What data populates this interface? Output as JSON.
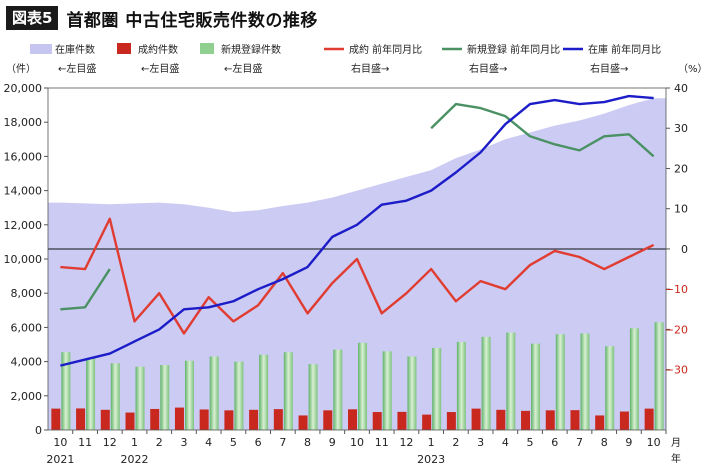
{
  "header": {
    "badge": "図表5",
    "title": "首都圏 中古住宅販売件数の推移"
  },
  "chart_data": {
    "type": "combo",
    "title": "首都圏 中古住宅販売件数の推移",
    "left_unit": "（件）",
    "right_unit": "（%）",
    "year_unit": "月\n年",
    "left_ylim": [
      0,
      20000
    ],
    "left_ticks": [
      "0",
      "2,000",
      "4,000",
      "6,000",
      "8,000",
      "10,000",
      "12,000",
      "14,000",
      "16,000",
      "18,000",
      "20,000"
    ],
    "right_ylim": [
      -45,
      40
    ],
    "right_ticks": [
      "40",
      "30",
      "20",
      "10",
      "0",
      "−10",
      "−20",
      "−30"
    ],
    "right_tick_values": [
      40,
      30,
      20,
      10,
      0,
      -10,
      -20,
      -30
    ],
    "months": [
      "10",
      "11",
      "12",
      "1",
      "2",
      "3",
      "4",
      "5",
      "6",
      "7",
      "8",
      "9",
      "10",
      "11",
      "12",
      "1",
      "2",
      "3",
      "4",
      "5",
      "6",
      "7",
      "8",
      "9",
      "10"
    ],
    "years": [
      {
        "label": "2021",
        "index": 0
      },
      {
        "label": "2022",
        "index": 3
      },
      {
        "label": "2023",
        "index": 15
      }
    ],
    "legend": [
      {
        "name": "在庫件数",
        "note": "←左目盛",
        "kind": "area",
        "color": "#c5c5f0"
      },
      {
        "name": "成約件数",
        "note": "←左目盛",
        "kind": "bar",
        "color": "#c8281e"
      },
      {
        "name": "新規登録件数",
        "note": "←左目盛",
        "kind": "bar",
        "color": "#8fcf8f"
      },
      {
        "name": "成約 前年同月比",
        "note": "右目盛→",
        "kind": "line",
        "color": "#e03c31"
      },
      {
        "name": "新規登録 前年同月比",
        "note": "右目盛→",
        "kind": "line",
        "color": "#4a9163"
      },
      {
        "name": "在庫 前年同月比",
        "note": "右目盛→",
        "kind": "line",
        "color": "#1c1cc8"
      }
    ],
    "series": [
      {
        "name": "在庫件数",
        "axis": "left",
        "values": [
          13300,
          13250,
          13200,
          13250,
          13300,
          13200,
          13000,
          12750,
          12850,
          13100,
          13300,
          13600,
          14000,
          14400,
          14800,
          15200,
          15900,
          16400,
          17000,
          17400,
          17800,
          18100,
          18500,
          19000,
          19400
        ]
      },
      {
        "name": "成約件数",
        "axis": "left",
        "values": [
          1250,
          1260,
          1180,
          1020,
          1230,
          1310,
          1200,
          1150,
          1180,
          1220,
          850,
          1150,
          1210,
          1050,
          1060,
          900,
          1050,
          1250,
          1180,
          1120,
          1150,
          1160,
          850,
          1080,
          1250
        ]
      },
      {
        "name": "新規登録件数",
        "axis": "left",
        "values": [
          4550,
          4200,
          3900,
          3700,
          3800,
          4050,
          4300,
          4000,
          4400,
          4550,
          3850,
          4700,
          5100,
          4600,
          4300,
          4800,
          5150,
          5450,
          5700,
          5050,
          5600,
          5650,
          4900,
          5950,
          6300
        ]
      },
      {
        "name": "成約 前年同月比",
        "axis": "right",
        "values": [
          -4.5,
          -5,
          7.5,
          -18,
          -11,
          -21,
          -12,
          -18,
          -14,
          -6,
          -16,
          -8.5,
          -2.5,
          -16,
          -11,
          -5,
          -13,
          -8,
          -10,
          -4,
          -0.5,
          -2,
          -5,
          -2,
          1
        ]
      },
      {
        "name": "新規登録 前年同月比",
        "axis": "right",
        "values": [
          -15,
          -14.5,
          -5,
          null,
          null,
          null,
          null,
          null,
          null,
          null,
          null,
          null,
          null,
          null,
          null,
          30,
          36,
          35,
          33,
          28,
          26,
          24.5,
          28,
          28.5,
          23
        ]
      },
      {
        "name": "在庫 前年同月比",
        "axis": "right",
        "values": [
          -29,
          -27.5,
          -26,
          -23,
          -20,
          -15,
          -14.5,
          -13,
          -10,
          -7.5,
          -4.5,
          3,
          6,
          11,
          12,
          14.5,
          19,
          24,
          31,
          36,
          37,
          36,
          36.5,
          38,
          37.5
        ]
      }
    ]
  }
}
